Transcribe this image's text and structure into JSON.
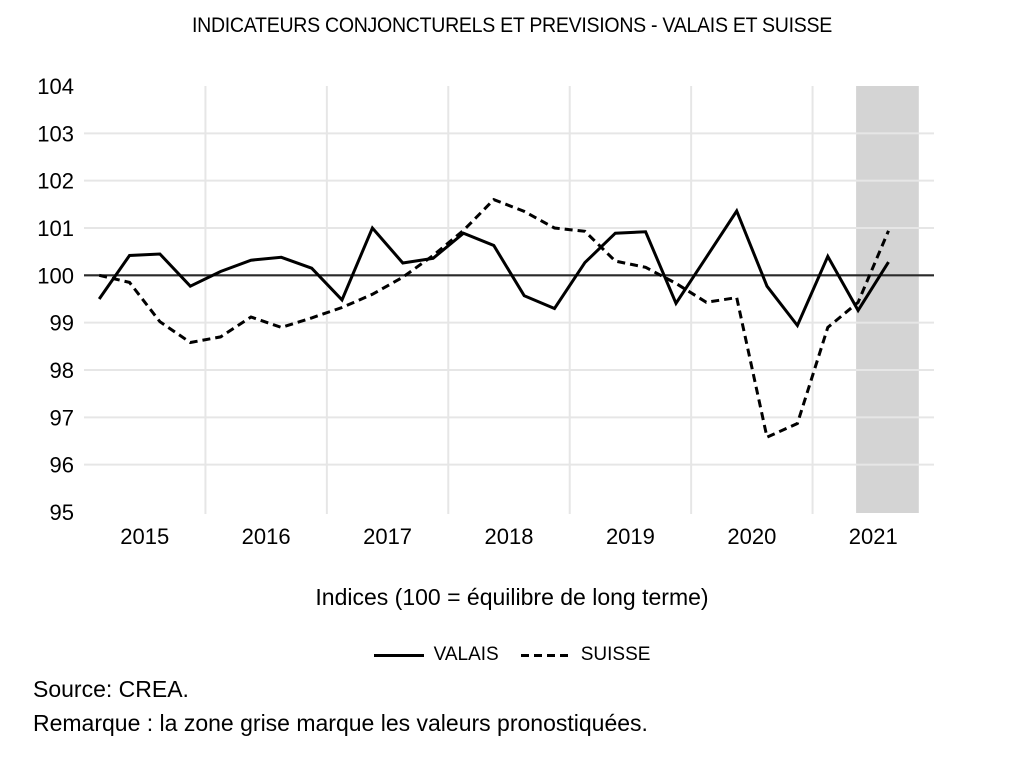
{
  "chart_data": {
    "type": "line",
    "title": "INDICATEURS CONJONCTURELS ET PREVISIONS  - VALAIS ET SUISSE",
    "xlabel": "Indices (100 = équilibre de long terme)",
    "ylabel": "",
    "ylim": [
      95,
      104
    ],
    "yticks": [
      "95",
      "96",
      "97",
      "98",
      "99",
      "100",
      "101",
      "102",
      "103",
      "104"
    ],
    "reference_line": 100,
    "grid": true,
    "x_periods_per_year": 4,
    "x_categories_count": 28,
    "year_labels": [
      "2015",
      "2016",
      "2017",
      "2018",
      "2019",
      "2020",
      "2021"
    ],
    "x": [
      "2015Q1",
      "2015Q2",
      "2015Q3",
      "2015Q4",
      "2016Q1",
      "2016Q2",
      "2016Q3",
      "2016Q4",
      "2017Q1",
      "2017Q2",
      "2017Q3",
      "2017Q4",
      "2018Q1",
      "2018Q2",
      "2018Q3",
      "2018Q4",
      "2019Q1",
      "2019Q2",
      "2019Q3",
      "2019Q4",
      "2020Q1",
      "2020Q2",
      "2020Q3",
      "2020Q4",
      "2021Q1",
      "2021Q2",
      "2021Q3"
    ],
    "forecast_region": {
      "from": "2021Q2",
      "to": "2021Q4",
      "color": "#d4d4d4"
    },
    "series": [
      {
        "name": "VALAIS",
        "style": "solid",
        "values": [
          99.5,
          100.42,
          100.45,
          99.77,
          100.08,
          100.32,
          100.38,
          100.15,
          99.48,
          101.0,
          100.26,
          100.36,
          100.89,
          100.63,
          99.57,
          99.3,
          100.27,
          100.89,
          100.92,
          99.41,
          100.38,
          101.36,
          99.77,
          98.94,
          100.4,
          99.26,
          100.28
        ]
      },
      {
        "name": "SUISSE",
        "style": "dashed",
        "values": [
          100.0,
          99.85,
          99.02,
          98.58,
          98.7,
          99.12,
          98.9,
          99.1,
          99.32,
          99.6,
          99.96,
          100.42,
          100.95,
          101.6,
          101.35,
          101.0,
          100.93,
          100.3,
          100.17,
          99.83,
          99.43,
          99.53,
          96.58,
          96.87,
          98.9,
          99.43,
          100.94
        ]
      }
    ],
    "legend": {
      "placement": "bottom",
      "entries": [
        "VALAIS",
        "SUISSE"
      ]
    }
  },
  "notes": {
    "source": "Source: CREA.",
    "remark": "Remarque : la zone grise marque les valeurs pronostiquées."
  }
}
